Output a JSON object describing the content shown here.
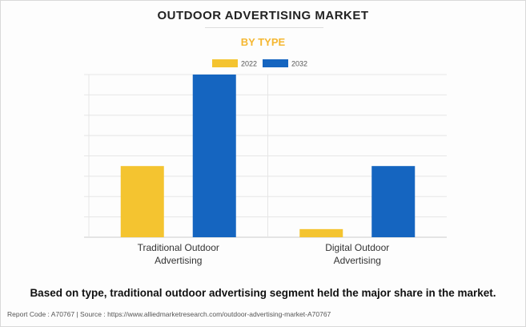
{
  "header": {
    "title": "OUTDOOR ADVERTISING MARKET",
    "subtitle": "BY TYPE"
  },
  "caption": "Based on type, traditional outdoor advertising segment held the major share in the market.",
  "footer": "Report Code : A70767  |  Source : https://www.alliedmarketresearch.com/outdoor-advertising-market-A70767",
  "colors": {
    "series_2022": "#f4c430",
    "series_2032": "#1565c0",
    "grid": "#e6e6e6",
    "axis": "#cccccc",
    "subtitle": "#f5b731"
  },
  "chart_data": {
    "type": "bar",
    "title": "OUTDOOR ADVERTISING MARKET",
    "subtitle": "BY TYPE",
    "categories": [
      [
        "Traditional Outdoor",
        "Advertising"
      ],
      [
        "Digital Outdoor",
        "Advertising"
      ]
    ],
    "series": [
      {
        "name": "2022",
        "values": [
          3.5,
          0.4
        ]
      },
      {
        "name": "2032",
        "values": [
          8.0,
          3.5
        ]
      }
    ],
    "ylim": [
      0,
      8.0
    ],
    "y_gridlines": 8,
    "grid": true,
    "legend": "top-center",
    "xlabel": "",
    "ylabel": ""
  }
}
